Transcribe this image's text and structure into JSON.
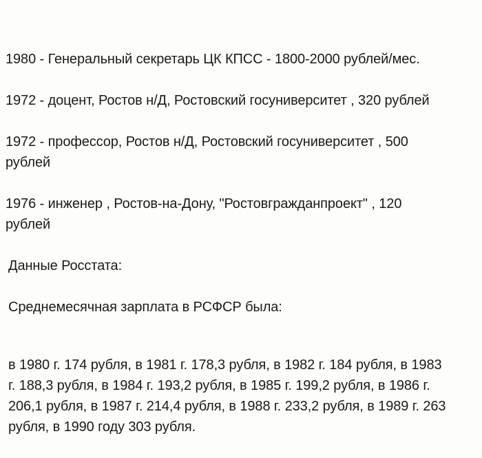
{
  "page": {
    "background_color": "#fdfdfb",
    "text_color": "#1a1a1a"
  },
  "salary_list": {
    "entries": [
      "1980 - Генеральный секретарь ЦК КПСС - 1800-2000 рублей/мес.",
      "1972 - доцент, Ростов н/Д, Ростовский госуниверситет , 320 рублей",
      "1972 - профессор, Ростов н/Д, Ростовский госуниверситет , 500\nрублей",
      "1976 - инженер , Ростов-на-Дону, \"Ростовгражданпроект\" , 120\nрублей"
    ]
  },
  "rosstat": {
    "heading": "Данные Росстата:",
    "subheading": "Среднемесячная зарплата в РСФСР была:",
    "paragraph": "в 1980 г. 174 рубля, в 1981 г. 178,3 рубля, в 1982 г. 184 рубля, в 1983\nг. 188,3 рубля, в 1984 г. 193,2 рубля, в 1985 г. 199,2 рубля, в 1986 г.\n206,1 рубля, в 1987 г. 214,4 рубля, в 1988 г. 233,2 рубля, в 1989 г. 263\nрубля, в 1990 году 303 рубля.",
    "average_salary_by_year": {
      "1980": "174",
      "1981": "178,3",
      "1982": "184",
      "1983": "188,3",
      "1984": "193,2",
      "1985": "199,2",
      "1986": "206,1",
      "1987": "214,4",
      "1988": "233,2",
      "1989": "263",
      "1990": "303"
    }
  }
}
